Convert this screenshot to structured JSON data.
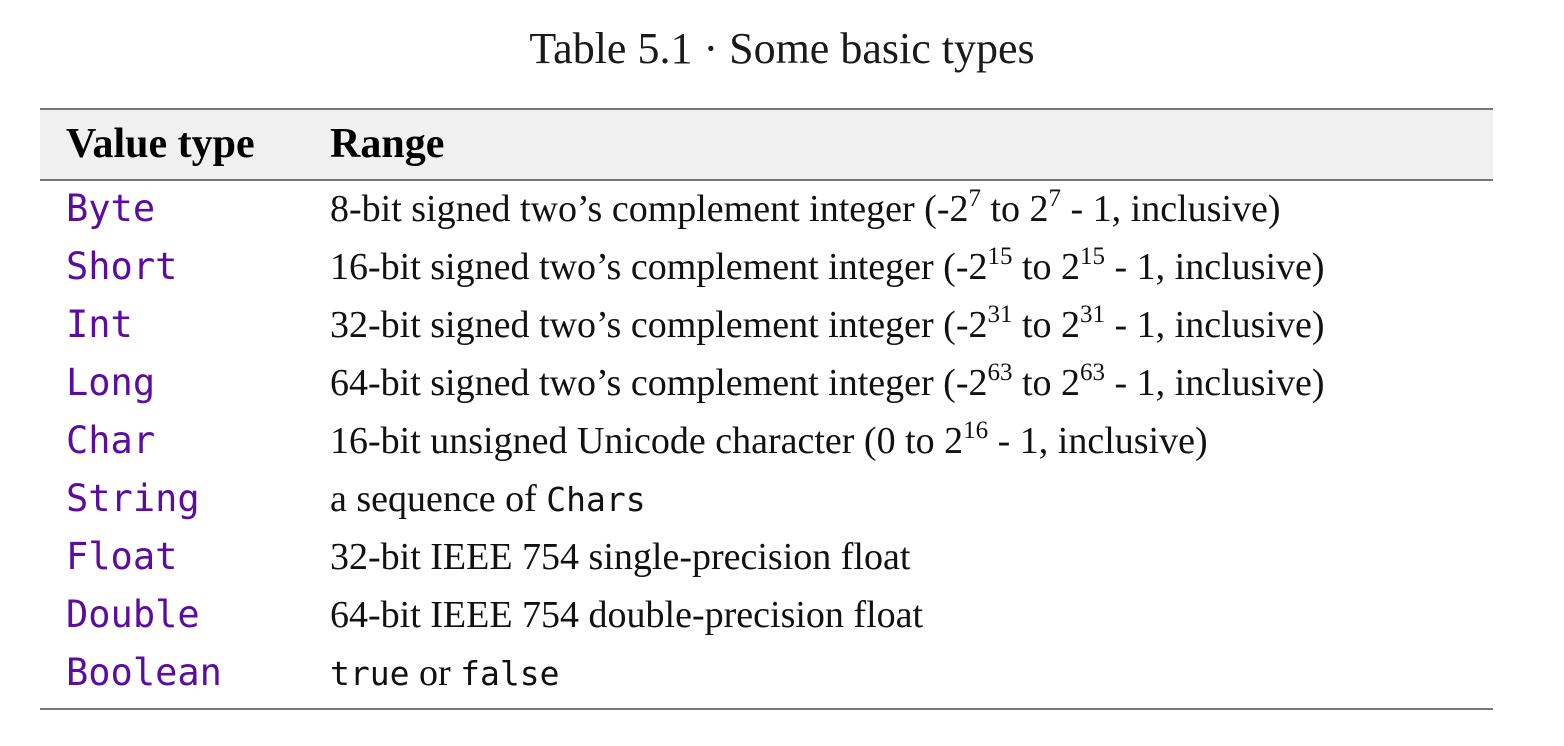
{
  "table": {
    "caption": "Table 5.1 · Some basic types",
    "headers": [
      "Value type",
      "Range"
    ],
    "rows": [
      {
        "type": "Byte",
        "range": {
          "a": "8-bit signed two’s complement integer (-2",
          "sup1": "7",
          "b": " to 2",
          "sup2": "7",
          "c": " - 1, inclusive)"
        }
      },
      {
        "type": "Short",
        "range": {
          "a": "16-bit signed two’s complement integer (-2",
          "sup1": "15",
          "b": " to 2",
          "sup2": "15",
          "c": " - 1, inclusive)"
        }
      },
      {
        "type": "Int",
        "range": {
          "a": "32-bit signed two’s complement integer (-2",
          "sup1": "31",
          "b": " to 2",
          "sup2": "31",
          "c": " - 1, inclusive)"
        }
      },
      {
        "type": "Long",
        "range": {
          "a": "64-bit signed two’s complement integer (-2",
          "sup1": "63",
          "b": " to 2",
          "sup2": "63",
          "c": " - 1, inclusive)"
        }
      },
      {
        "type": "Char",
        "range": {
          "a": "16-bit unsigned Unicode character (0 to 2",
          "sup1": "16",
          "b": " - 1, inclusive)"
        }
      },
      {
        "type": "String",
        "range": {
          "a": "a sequence of ",
          "code1": "Chars"
        }
      },
      {
        "type": "Float",
        "range": {
          "a": "32-bit IEEE 754 single-precision float"
        }
      },
      {
        "type": "Double",
        "range": {
          "a": "64-bit IEEE 754 double-precision float"
        }
      },
      {
        "type": "Boolean",
        "range": {
          "code1": "true",
          "a": " or ",
          "code2": "false"
        }
      }
    ]
  },
  "colors": {
    "type_name": "#5b0da0",
    "header_band": "#f0f0f0",
    "rule": "#777777"
  }
}
